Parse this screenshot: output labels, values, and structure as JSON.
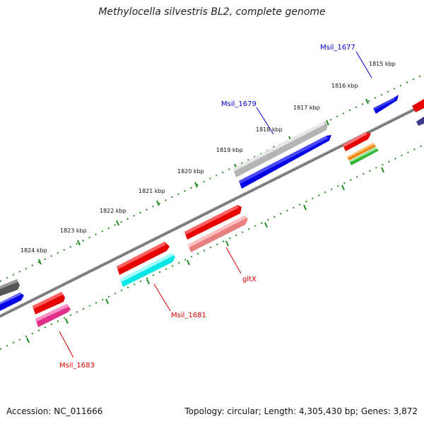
{
  "title": "Methylocella silvestris BL2, complete genome",
  "footer": {
    "accession": "Accession: NC_011666",
    "topology": "Topology: circular; Length: 4,305,430 bp; Genes: 3,872"
  },
  "colors": {
    "backbone": "#7a7a7a",
    "ticks": "#1e8a1e",
    "label_blue": "#0000cc",
    "label_red": "#dd0000"
  },
  "ticks": [
    "1815 kbp",
    "1816 kbp",
    "1817 kbp",
    "1818 kbp",
    "1819 kbp",
    "1820 kbp",
    "1821 kbp",
    "1822 kbp",
    "1823 kbp",
    "1824 kbp"
  ],
  "gene_labels": [
    {
      "name": "Msil_1677",
      "color": "#0000cc"
    },
    {
      "name": "Msil_1679",
      "color": "#0000cc"
    },
    {
      "name": "gltX",
      "color": "#dd0000"
    },
    {
      "name": "Msil_1681",
      "color": "#dd0000"
    },
    {
      "name": "Msil_1683",
      "color": "#dd0000"
    }
  ],
  "genes": [
    {
      "id": "g-blue-1677",
      "color": "#0000e6"
    },
    {
      "id": "g-gray-1679",
      "color": "#b4b4b4"
    },
    {
      "id": "g-blue-1679",
      "color": "#0000e6"
    },
    {
      "id": "g-red-a",
      "color": "#e60000"
    },
    {
      "id": "g-orange",
      "color": "#f08000"
    },
    {
      "id": "g-green",
      "color": "#33b533"
    },
    {
      "id": "g-red-b",
      "color": "#e60000"
    },
    {
      "id": "g-pink-gltx",
      "color": "#e88080"
    },
    {
      "id": "g-red-c",
      "color": "#e60000"
    },
    {
      "id": "g-cyan-1681",
      "color": "#00e5e5"
    },
    {
      "id": "g-red-d",
      "color": "#e60000"
    },
    {
      "id": "g-magenta-1683",
      "color": "#e0308a"
    },
    {
      "id": "g-darkgray-left",
      "color": "#555555"
    },
    {
      "id": "g-blue-left",
      "color": "#0000e6"
    },
    {
      "id": "g-red-edge",
      "color": "#e60000"
    },
    {
      "id": "g-navy-edge",
      "color": "#3a3a8a"
    }
  ]
}
